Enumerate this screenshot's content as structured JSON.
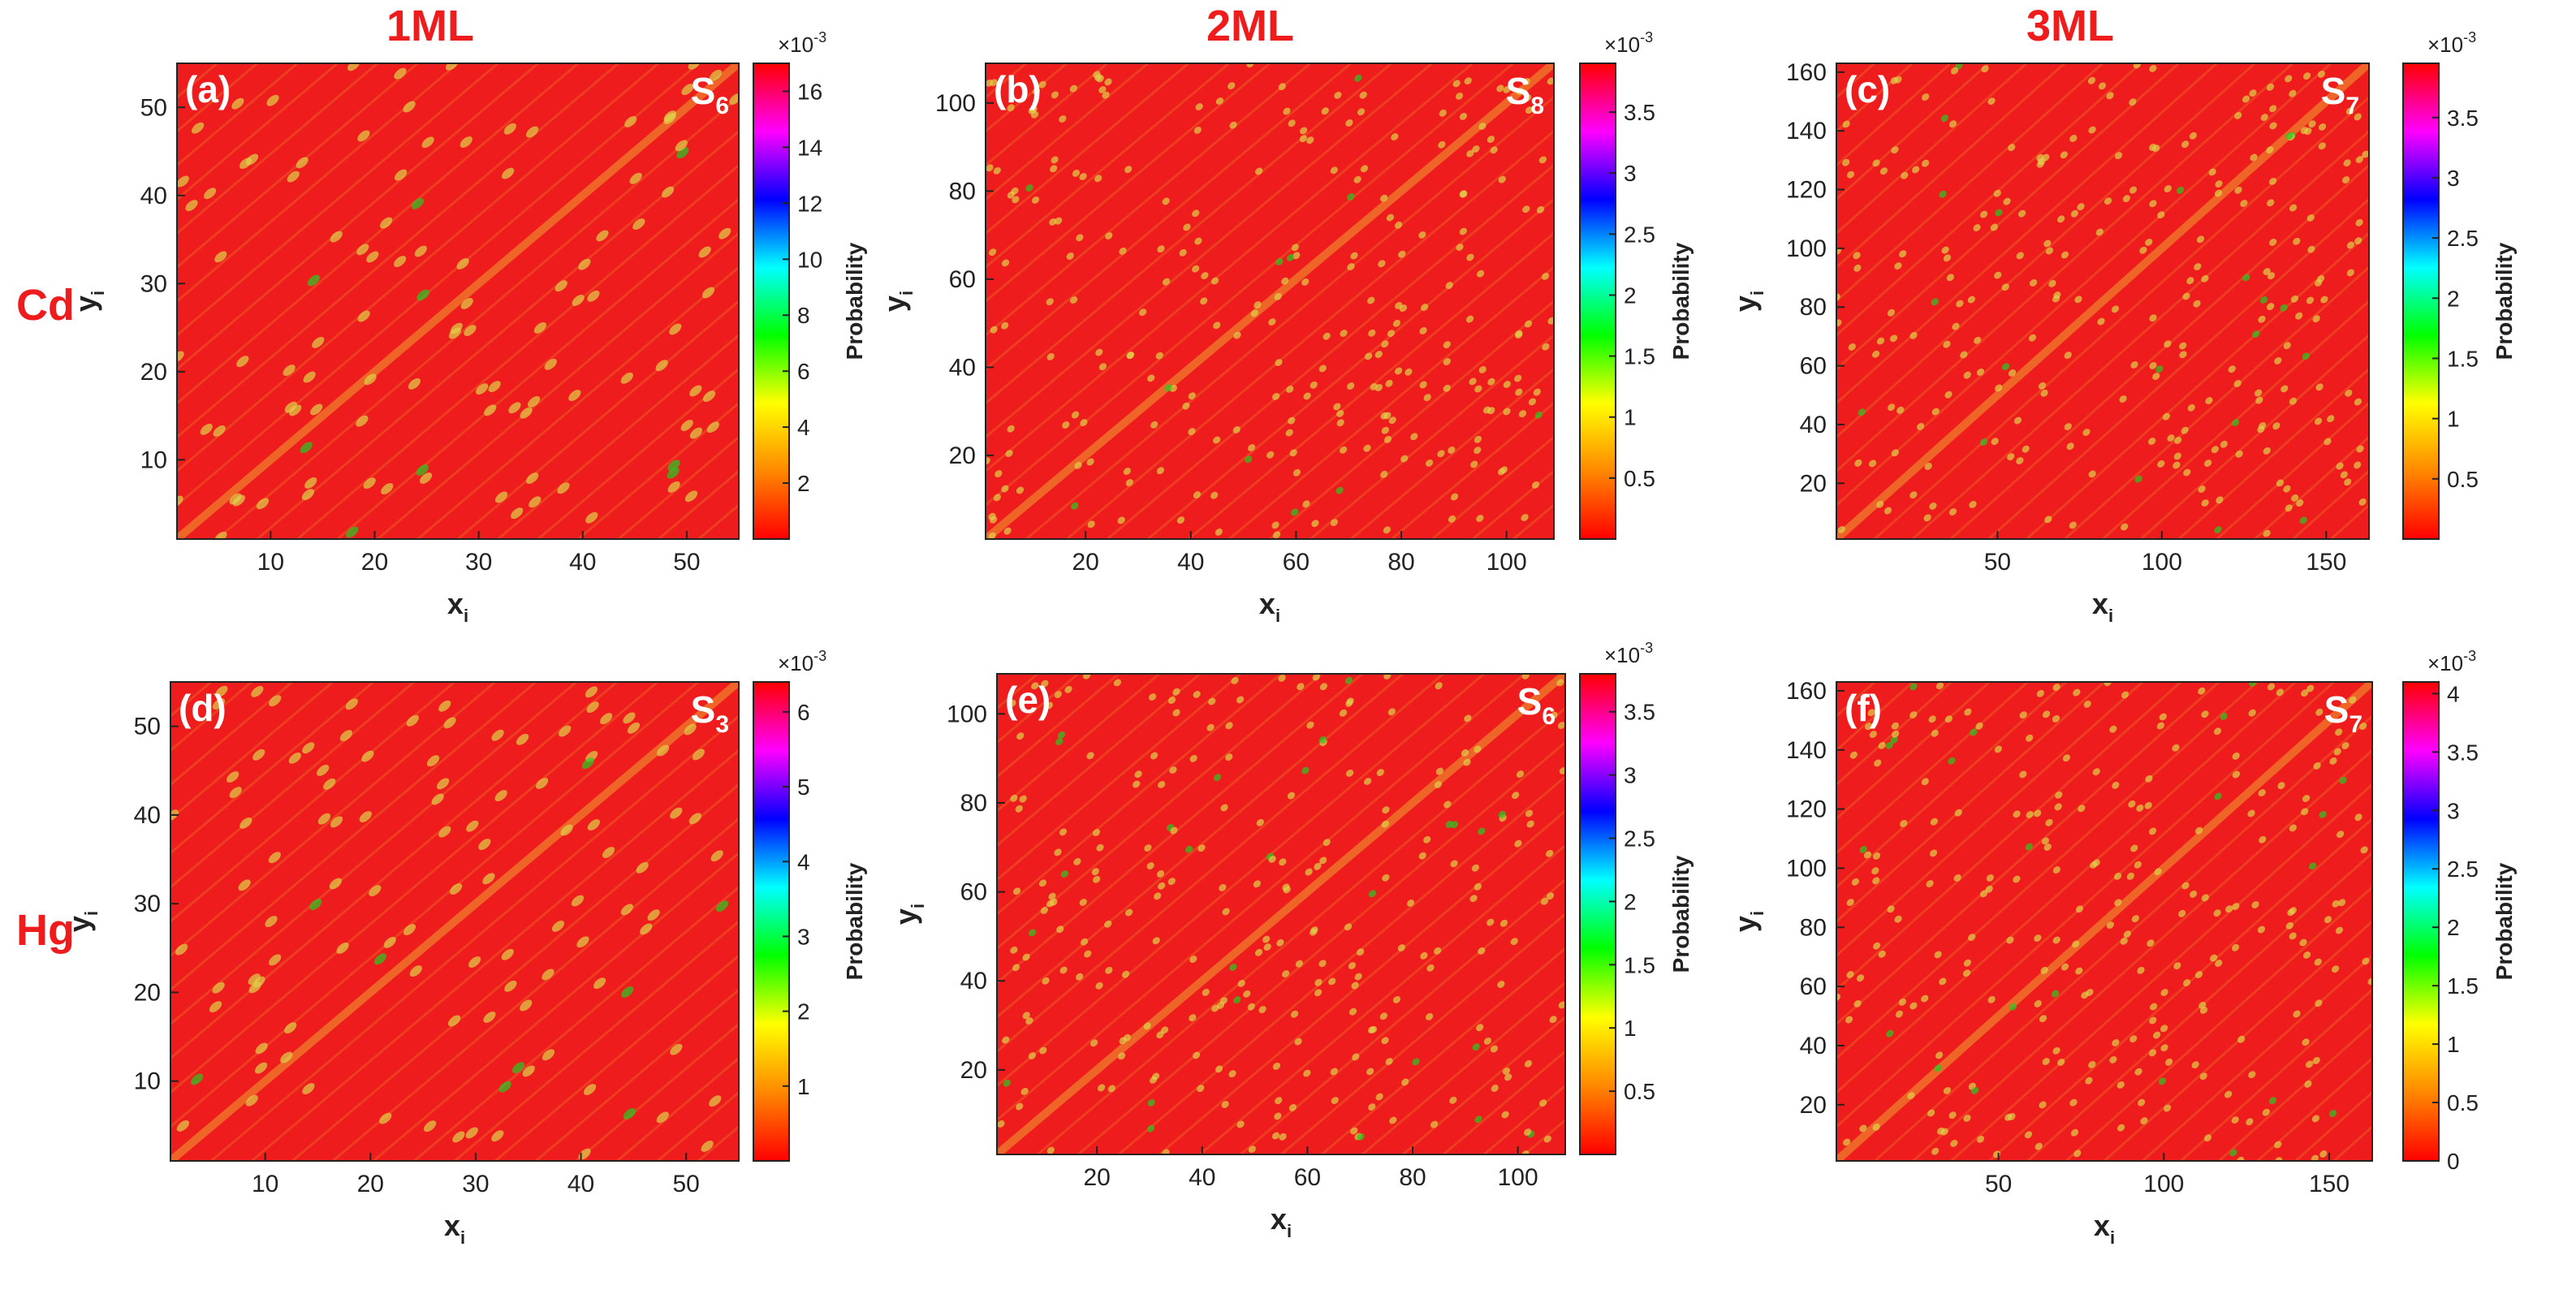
{
  "colors": {
    "accent_red": "#ee1c1c",
    "background": "#ee1c1c",
    "colormap": [
      "#ff0000",
      "#ff8800",
      "#ffff00",
      "#00ff00",
      "#00ffff",
      "#0000ff",
      "#ff00ff",
      "#ff0000"
    ],
    "spot_color": "#e0d24a",
    "line_color": "#f0a030"
  },
  "column_headers": [
    "1ML",
    "2ML",
    "3ML"
  ],
  "row_headers": [
    "Cd",
    "Hg"
  ],
  "chart_data": [
    {
      "type": "heatmap",
      "panel": "(a)",
      "state": {
        "base": "S",
        "sub": "6"
      },
      "element": "Cd",
      "layers": "1ML",
      "xlabel": {
        "base": "x",
        "sub": "i"
      },
      "ylabel": {
        "base": "y",
        "sub": "i"
      },
      "xlim": [
        1,
        55
      ],
      "ylim": [
        1,
        55
      ],
      "xticks": [
        10,
        20,
        30,
        40,
        50
      ],
      "yticks": [
        10,
        20,
        30,
        40,
        50
      ],
      "colorbar": {
        "label": "Probability",
        "exponent": "×10",
        "exponent_power": "-3",
        "range": [
          0,
          17
        ],
        "ticks": [
          "2",
          "4",
          "6",
          "8",
          "10",
          "12",
          "14",
          "16"
        ],
        "tick_values": [
          2,
          4,
          6,
          8,
          10,
          12,
          14,
          16
        ]
      }
    },
    {
      "type": "heatmap",
      "panel": "(b)",
      "state": {
        "base": "S",
        "sub": "8"
      },
      "element": "Cd",
      "layers": "2ML",
      "xlabel": {
        "base": "x",
        "sub": "i"
      },
      "ylabel": {
        "base": "y",
        "sub": "i"
      },
      "xlim": [
        1,
        109
      ],
      "ylim": [
        1,
        109
      ],
      "xticks": [
        20,
        40,
        60,
        80,
        100
      ],
      "yticks": [
        20,
        40,
        60,
        80,
        100
      ],
      "colorbar": {
        "label": "Probability",
        "exponent": "×10",
        "exponent_power": "-3",
        "range": [
          0,
          3.9
        ],
        "ticks": [
          "0.5",
          "1",
          "1.5",
          "2",
          "2.5",
          "3",
          "3.5"
        ],
        "tick_values": [
          0.5,
          1,
          1.5,
          2,
          2.5,
          3,
          3.5
        ]
      }
    },
    {
      "type": "heatmap",
      "panel": "(c)",
      "state": {
        "base": "S",
        "sub": "7"
      },
      "element": "Cd",
      "layers": "3ML",
      "xlabel": {
        "base": "x",
        "sub": "i"
      },
      "ylabel": {
        "base": "y",
        "sub": "i"
      },
      "xlim": [
        1,
        163
      ],
      "ylim": [
        1,
        163
      ],
      "xticks": [
        50,
        100,
        150
      ],
      "yticks": [
        20,
        40,
        60,
        80,
        100,
        120,
        140,
        160
      ],
      "colorbar": {
        "label": "Probability",
        "exponent": "×10",
        "exponent_power": "-3",
        "range": [
          0,
          3.95
        ],
        "ticks": [
          "0.5",
          "1",
          "1.5",
          "2",
          "2.5",
          "3",
          "3.5"
        ],
        "tick_values": [
          0.5,
          1,
          1.5,
          2,
          2.5,
          3,
          3.5
        ]
      }
    },
    {
      "type": "heatmap",
      "panel": "(d)",
      "state": {
        "base": "S",
        "sub": "3"
      },
      "element": "Hg",
      "layers": "1ML",
      "xlabel": {
        "base": "x",
        "sub": "i"
      },
      "ylabel": {
        "base": "y",
        "sub": "i"
      },
      "xlim": [
        1,
        55
      ],
      "ylim": [
        1,
        55
      ],
      "xticks": [
        10,
        20,
        30,
        40,
        50
      ],
      "yticks": [
        10,
        20,
        30,
        40,
        50
      ],
      "colorbar": {
        "label": "Probability",
        "exponent": "×10",
        "exponent_power": "-3",
        "range": [
          0,
          6.4
        ],
        "ticks": [
          "1",
          "2",
          "3",
          "4",
          "5",
          "6"
        ],
        "tick_values": [
          1,
          2,
          3,
          4,
          5,
          6
        ]
      }
    },
    {
      "type": "heatmap",
      "panel": "(e)",
      "state": {
        "base": "S",
        "sub": "6"
      },
      "element": "Hg",
      "layers": "2ML",
      "xlabel": {
        "base": "x",
        "sub": "i"
      },
      "ylabel": {
        "base": "y",
        "sub": "i"
      },
      "xlim": [
        1,
        109
      ],
      "ylim": [
        1,
        109
      ],
      "xticks": [
        20,
        40,
        60,
        80,
        100
      ],
      "yticks": [
        20,
        40,
        60,
        80,
        100
      ],
      "colorbar": {
        "label": "Probability",
        "exponent": "×10",
        "exponent_power": "-3",
        "range": [
          0,
          3.8
        ],
        "ticks": [
          "0.5",
          "1",
          "1.5",
          "2",
          "2.5",
          "3",
          "3.5"
        ],
        "tick_values": [
          0.5,
          1,
          1.5,
          2,
          2.5,
          3,
          3.5
        ]
      }
    },
    {
      "type": "heatmap",
      "panel": "(f)",
      "state": {
        "base": "S",
        "sub": "7"
      },
      "element": "Hg",
      "layers": "3ML",
      "xlabel": {
        "base": "x",
        "sub": "i"
      },
      "ylabel": {
        "base": "y",
        "sub": "i"
      },
      "xlim": [
        1,
        163
      ],
      "ylim": [
        1,
        163
      ],
      "xticks": [
        50,
        100,
        150
      ],
      "yticks": [
        20,
        40,
        60,
        80,
        100,
        120,
        140,
        160
      ],
      "colorbar": {
        "label": "Probability",
        "exponent": "×10",
        "exponent_power": "-3",
        "range": [
          0,
          4.1
        ],
        "ticks": [
          "0",
          "0.5",
          "1",
          "1.5",
          "2",
          "2.5",
          "3",
          "3.5",
          "4"
        ],
        "tick_values": [
          0,
          0.5,
          1,
          1.5,
          2,
          2.5,
          3,
          3.5,
          4
        ]
      }
    }
  ]
}
